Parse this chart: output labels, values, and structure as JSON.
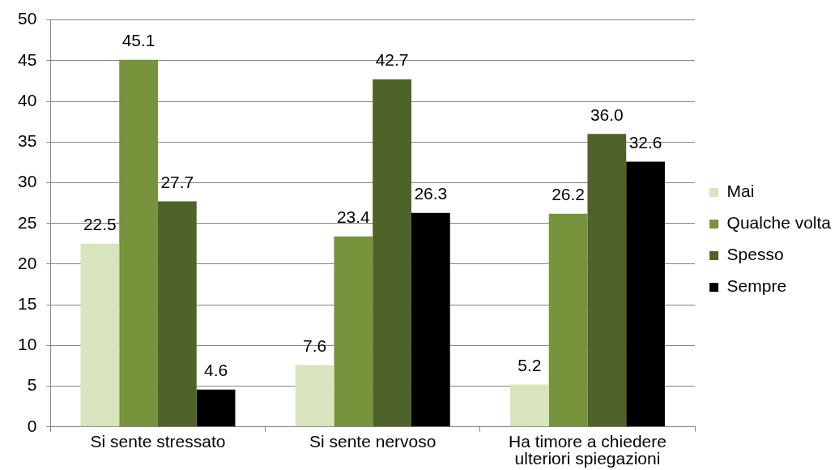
{
  "chart_data": {
    "type": "bar",
    "categories": [
      "Si sente stressato",
      "Si sente nervoso",
      "Ha timore a chiedere ulteriori spiegazioni"
    ],
    "series": [
      {
        "name": "Mai",
        "color": "#d7e4bd",
        "values": [
          22.5,
          7.6,
          5.2
        ],
        "value_labels": [
          "22.5",
          "7.6",
          "5.2"
        ]
      },
      {
        "name": "Qualche volta",
        "color": "#77933c",
        "values": [
          45.1,
          23.4,
          26.2
        ],
        "value_labels": [
          "45.1",
          "23.4",
          "26.2"
        ]
      },
      {
        "name": "Spesso",
        "color": "#4f6228",
        "values": [
          27.7,
          42.7,
          36.0
        ],
        "value_labels": [
          "27.7",
          "42.7",
          "36.0"
        ]
      },
      {
        "name": "Sempre",
        "color": "#000000",
        "values": [
          4.6,
          26.3,
          32.6
        ],
        "value_labels": [
          "4.6",
          "26.3",
          "32.6"
        ]
      }
    ],
    "ylim": [
      0,
      50
    ],
    "yticks": [
      0,
      5,
      10,
      15,
      20,
      25,
      30,
      35,
      40,
      45,
      50
    ],
    "grid": "y",
    "legend": "right"
  }
}
